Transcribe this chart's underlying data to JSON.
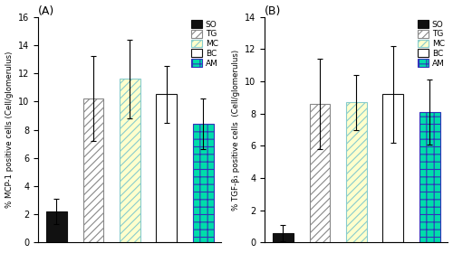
{
  "panel_A": {
    "title": "(A)",
    "ylabel": "% MCP-1 positive cells (Cell/glomerulus)",
    "ylim": [
      0,
      16
    ],
    "yticks": [
      0,
      2,
      4,
      6,
      8,
      10,
      12,
      14,
      16
    ],
    "groups": [
      "SO",
      "TG",
      "MC",
      "BC",
      "AM"
    ],
    "values": [
      2.2,
      10.2,
      11.6,
      10.5,
      8.4
    ],
    "errors": [
      0.9,
      3.0,
      2.8,
      2.0,
      1.8
    ]
  },
  "panel_B": {
    "title": "(B)",
    "ylabel": "% TGF-β₁ positive cells  (Cell/glomerulus)",
    "ylim": [
      0,
      14
    ],
    "yticks": [
      0,
      2,
      4,
      6,
      8,
      10,
      12,
      14
    ],
    "groups": [
      "SO",
      "TG",
      "MC",
      "BC",
      "AM"
    ],
    "values": [
      0.6,
      8.6,
      8.7,
      9.2,
      8.1
    ],
    "errors": [
      0.5,
      2.8,
      1.7,
      3.0,
      2.0
    ]
  },
  "legend_labels": [
    "SO",
    "TG",
    "MC",
    "BC",
    "AM"
  ],
  "bar_styles": {
    "SO": {
      "facecolor": "#111111",
      "hatch": "",
      "edgecolor": "#111111",
      "lw": 0.8
    },
    "TG": {
      "facecolor": "#ffffff",
      "hatch": "////",
      "edgecolor": "#888888",
      "lw": 0.8
    },
    "MC": {
      "facecolor": "#ffffcc",
      "hatch": "////",
      "edgecolor": "#88cccc",
      "lw": 0.8
    },
    "BC": {
      "facecolor": "#ffffff",
      "hatch": "",
      "edgecolor": "#111111",
      "lw": 0.8
    },
    "AM": {
      "facecolor": "#00ddaa",
      "hatch": "++",
      "edgecolor": "#3333bb",
      "lw": 0.8
    }
  },
  "bar_width": 0.45,
  "bar_positions": [
    0.5,
    1.3,
    2.1,
    2.9,
    3.7
  ],
  "xlim": [
    0.1,
    4.1
  ],
  "figure_size": [
    5.0,
    2.8
  ],
  "dpi": 100,
  "legend_loc": "upper right",
  "legend_fontsize": 6.5,
  "ylabel_fontsize": 6.2,
  "tick_fontsize": 7
}
